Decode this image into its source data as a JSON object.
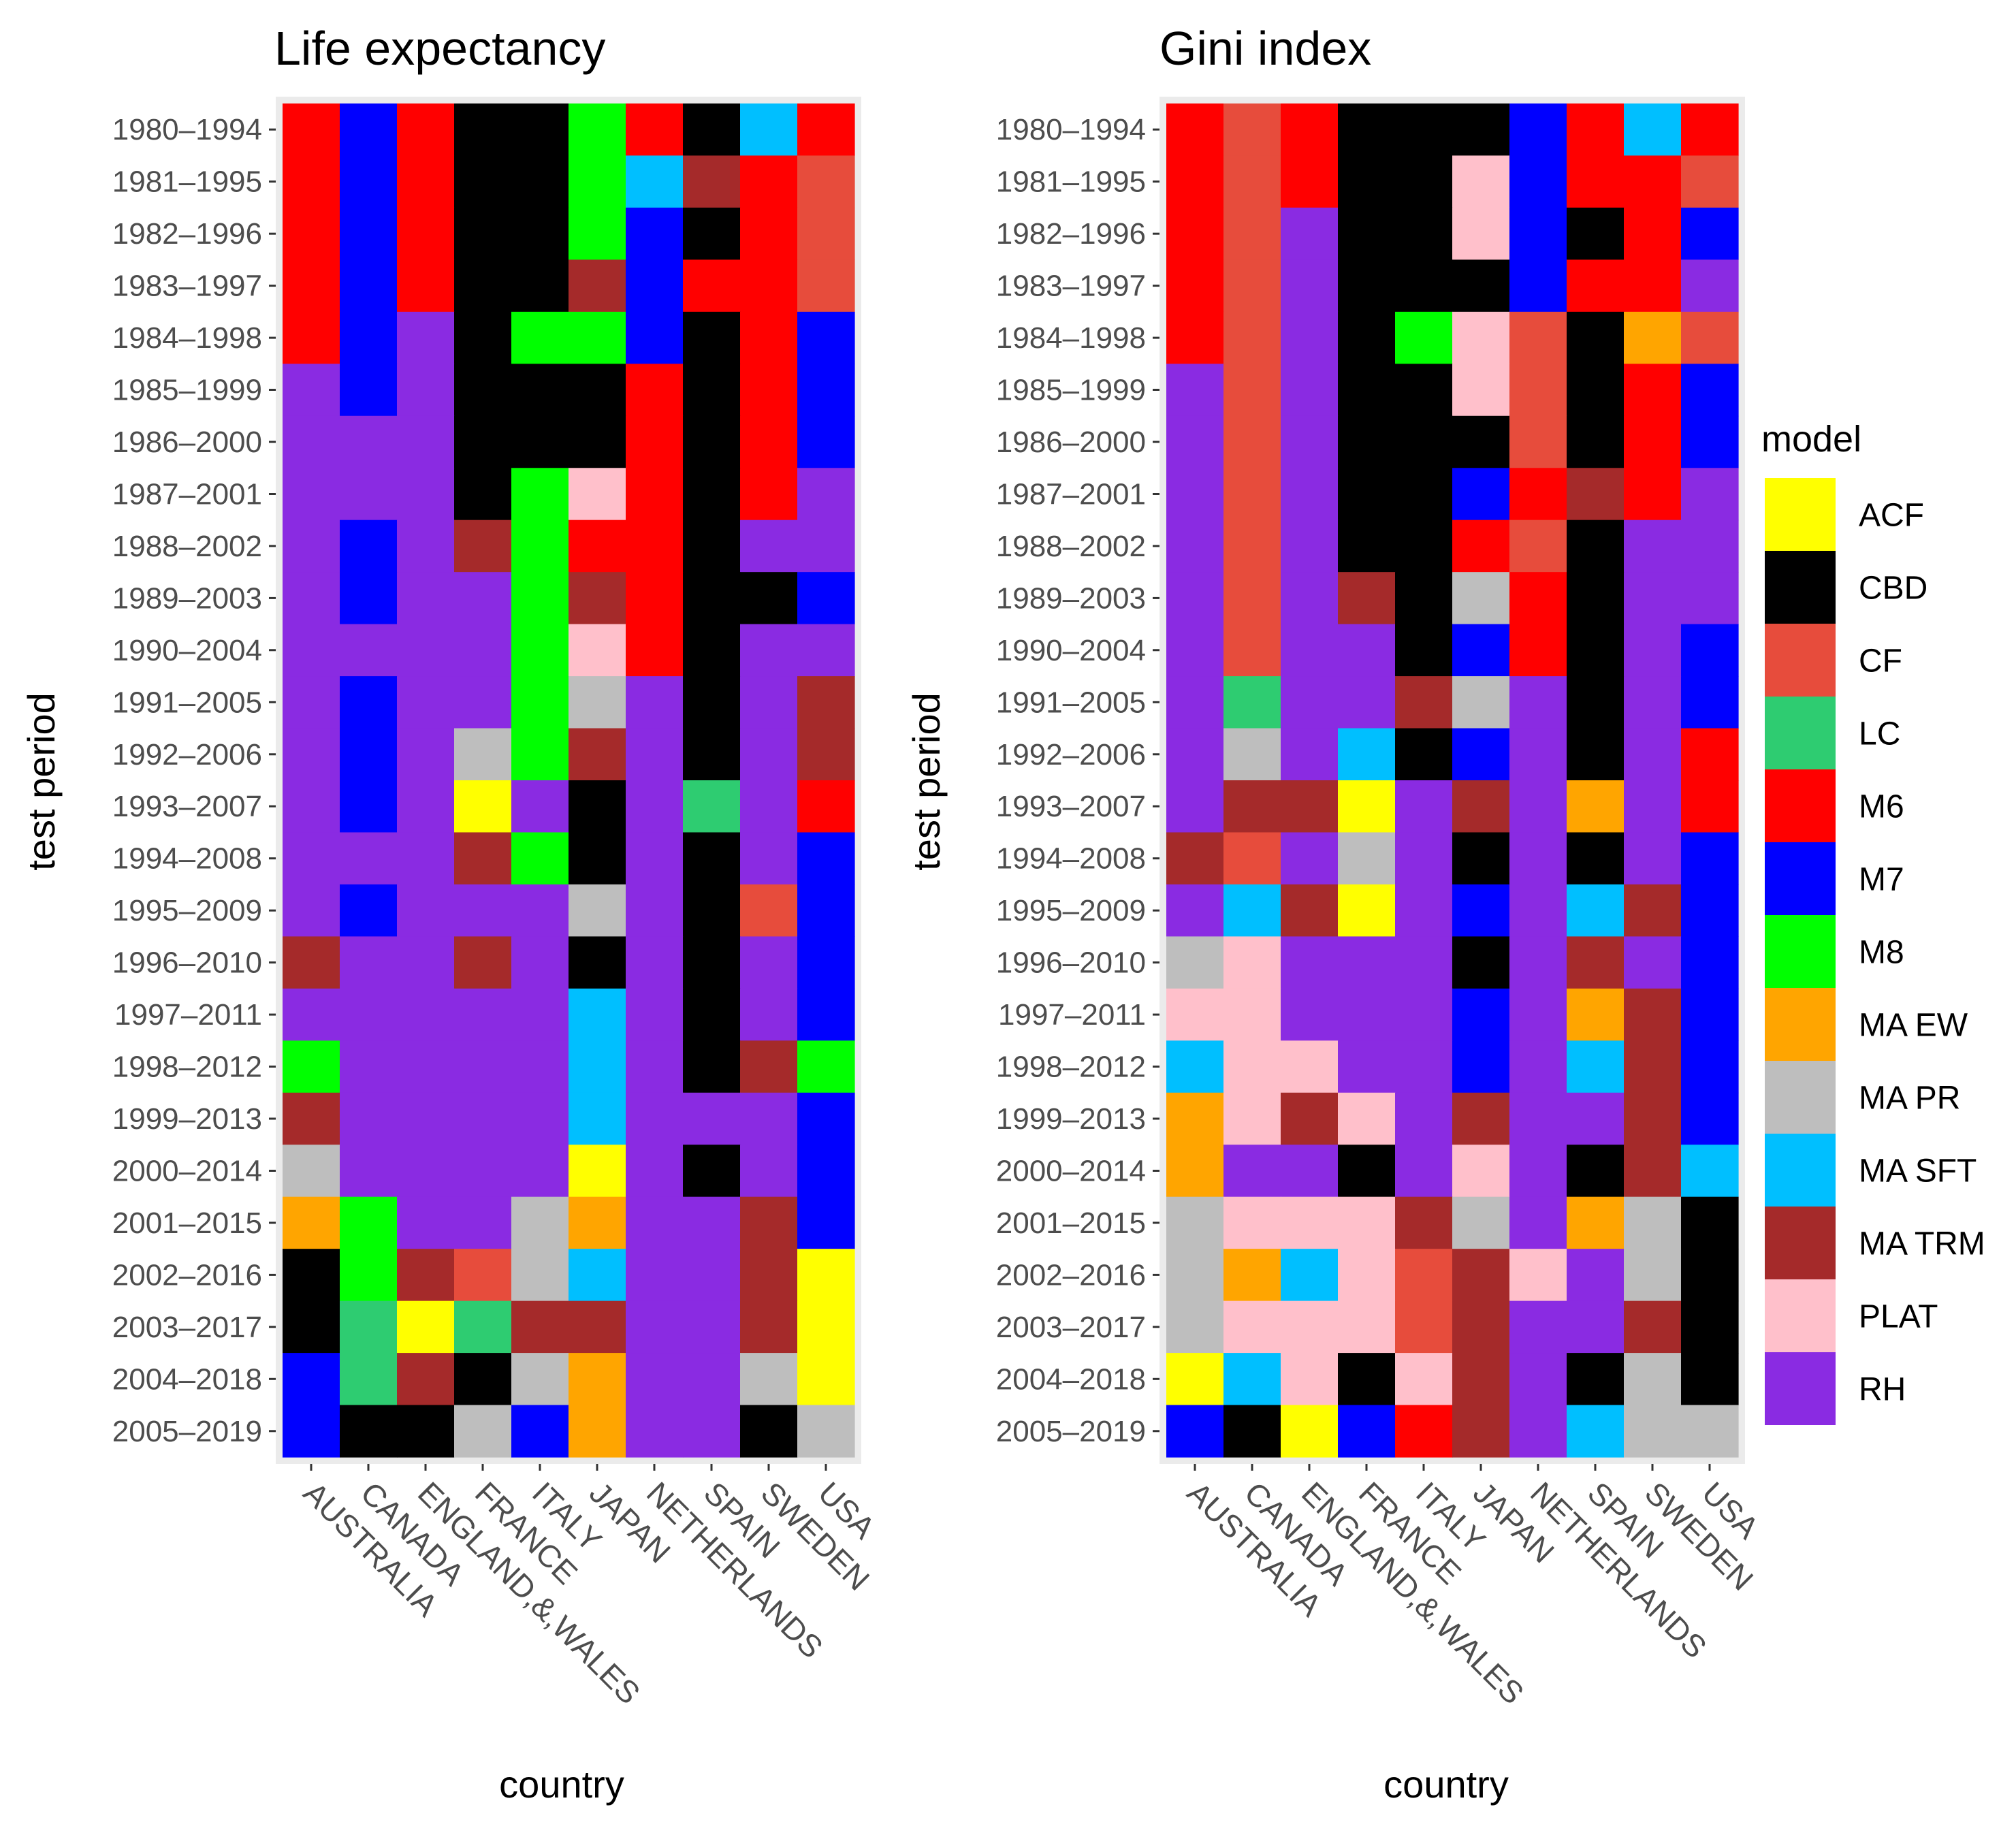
{
  "chart_data": [
    {
      "type": "heatmap",
      "title": "Life expectancy",
      "xlabel": "country",
      "ylabel": "test period",
      "x": [
        "AUSTRALIA",
        "CANADA",
        "ENGLAND,&,WALES",
        "FRANCE",
        "ITALY",
        "JAPAN",
        "NETHERLANDS",
        "SPAIN",
        "SWEDEN",
        "USA"
      ],
      "y": [
        "1980–1994",
        "1981–1995",
        "1982–1996",
        "1983–1997",
        "1984–1998",
        "1985–1999",
        "1986–2000",
        "1987–2001",
        "1988–2002",
        "1989–2003",
        "1990–2004",
        "1991–2005",
        "1992–2006",
        "1993–2007",
        "1994–2008",
        "1995–2009",
        "1996–2010",
        "1997–2011",
        "1998–2012",
        "1999–2013",
        "2000–2014",
        "2001–2015",
        "2002–2016",
        "2003–2017",
        "2004–2018",
        "2005–2019"
      ],
      "cells": [
        [
          "M6",
          "M7",
          "M6",
          "CBD",
          "CBD",
          "M8",
          "M6",
          "CBD",
          "MA SFT",
          "M6"
        ],
        [
          "M6",
          "M7",
          "M6",
          "CBD",
          "CBD",
          "M8",
          "MA SFT",
          "MA TRM",
          "M6",
          "CF"
        ],
        [
          "M6",
          "M7",
          "M6",
          "CBD",
          "CBD",
          "M8",
          "M7",
          "CBD",
          "M6",
          "CF"
        ],
        [
          "M6",
          "M7",
          "M6",
          "CBD",
          "CBD",
          "MA TRM",
          "M7",
          "M6",
          "M6",
          "CF"
        ],
        [
          "M6",
          "M7",
          "RH",
          "CBD",
          "M8",
          "M8",
          "M7",
          "CBD",
          "M6",
          "M7"
        ],
        [
          "RH",
          "M7",
          "RH",
          "CBD",
          "CBD",
          "CBD",
          "M6",
          "CBD",
          "M6",
          "M7"
        ],
        [
          "RH",
          "RH",
          "RH",
          "CBD",
          "CBD",
          "CBD",
          "M6",
          "CBD",
          "M6",
          "M7"
        ],
        [
          "RH",
          "RH",
          "RH",
          "CBD",
          "M8",
          "PLAT",
          "M6",
          "CBD",
          "M6",
          "RH"
        ],
        [
          "RH",
          "M7",
          "RH",
          "MA TRM",
          "M8",
          "M6",
          "M6",
          "CBD",
          "RH",
          "RH"
        ],
        [
          "RH",
          "M7",
          "RH",
          "RH",
          "M8",
          "MA TRM",
          "M6",
          "CBD",
          "CBD",
          "M7"
        ],
        [
          "RH",
          "RH",
          "RH",
          "RH",
          "M8",
          "PLAT",
          "M6",
          "CBD",
          "RH",
          "RH"
        ],
        [
          "RH",
          "M7",
          "RH",
          "RH",
          "M8",
          "MA PR",
          "RH",
          "CBD",
          "RH",
          "MA TRM"
        ],
        [
          "RH",
          "M7",
          "RH",
          "MA PR",
          "M8",
          "MA TRM",
          "RH",
          "CBD",
          "RH",
          "MA TRM"
        ],
        [
          "RH",
          "M7",
          "RH",
          "ACF",
          "RH",
          "CBD",
          "RH",
          "LC",
          "RH",
          "M6"
        ],
        [
          "RH",
          "RH",
          "RH",
          "MA TRM",
          "M8",
          "CBD",
          "RH",
          "CBD",
          "RH",
          "M7"
        ],
        [
          "RH",
          "M7",
          "RH",
          "RH",
          "RH",
          "MA PR",
          "RH",
          "CBD",
          "CF",
          "M7"
        ],
        [
          "MA TRM",
          "RH",
          "RH",
          "MA TRM",
          "RH",
          "CBD",
          "RH",
          "CBD",
          "RH",
          "M7"
        ],
        [
          "RH",
          "RH",
          "RH",
          "RH",
          "RH",
          "MA SFT",
          "RH",
          "CBD",
          "RH",
          "M7"
        ],
        [
          "M8",
          "RH",
          "RH",
          "RH",
          "RH",
          "MA SFT",
          "RH",
          "CBD",
          "MA TRM",
          "M8"
        ],
        [
          "MA TRM",
          "RH",
          "RH",
          "RH",
          "RH",
          "MA SFT",
          "RH",
          "RH",
          "RH",
          "M7"
        ],
        [
          "MA PR",
          "RH",
          "RH",
          "RH",
          "RH",
          "ACF",
          "RH",
          "CBD",
          "RH",
          "M7"
        ],
        [
          "MA EW",
          "M8",
          "RH",
          "RH",
          "MA PR",
          "MA EW",
          "RH",
          "RH",
          "MA TRM",
          "M7"
        ],
        [
          "CBD",
          "M8",
          "MA TRM",
          "CF",
          "MA PR",
          "MA SFT",
          "RH",
          "RH",
          "MA TRM",
          "ACF"
        ],
        [
          "CBD",
          "LC",
          "ACF",
          "LC",
          "MA TRM",
          "MA TRM",
          "RH",
          "RH",
          "MA TRM",
          "ACF"
        ],
        [
          "M7",
          "LC",
          "MA TRM",
          "CBD",
          "MA PR",
          "MA EW",
          "RH",
          "RH",
          "MA PR",
          "ACF"
        ],
        [
          "M7",
          "CBD",
          "CBD",
          "MA PR",
          "M7",
          "MA EW",
          "RH",
          "RH",
          "CBD",
          "MA PR"
        ]
      ]
    },
    {
      "type": "heatmap",
      "title": "Gini index",
      "xlabel": "country",
      "ylabel": "test period",
      "x": [
        "AUSTRALIA",
        "CANADA",
        "ENGLAND,&,WALES",
        "FRANCE",
        "ITALY",
        "JAPAN",
        "NETHERLANDS",
        "SPAIN",
        "SWEDEN",
        "USA"
      ],
      "y": [
        "1980–1994",
        "1981–1995",
        "1982–1996",
        "1983–1997",
        "1984–1998",
        "1985–1999",
        "1986–2000",
        "1987–2001",
        "1988–2002",
        "1989–2003",
        "1990–2004",
        "1991–2005",
        "1992–2006",
        "1993–2007",
        "1994–2008",
        "1995–2009",
        "1996–2010",
        "1997–2011",
        "1998–2012",
        "1999–2013",
        "2000–2014",
        "2001–2015",
        "2002–2016",
        "2003–2017",
        "2004–2018",
        "2005–2019"
      ],
      "cells": [
        [
          "M6",
          "CF",
          "M6",
          "CBD",
          "CBD",
          "CBD",
          "M7",
          "M6",
          "MA SFT",
          "M6"
        ],
        [
          "M6",
          "CF",
          "M6",
          "CBD",
          "CBD",
          "PLAT",
          "M7",
          "M6",
          "M6",
          "CF"
        ],
        [
          "M6",
          "CF",
          "RH",
          "CBD",
          "CBD",
          "PLAT",
          "M7",
          "CBD",
          "M6",
          "M7"
        ],
        [
          "M6",
          "CF",
          "RH",
          "CBD",
          "CBD",
          "CBD",
          "M7",
          "M6",
          "M6",
          "RH"
        ],
        [
          "M6",
          "CF",
          "RH",
          "CBD",
          "M8",
          "PLAT",
          "CF",
          "CBD",
          "MA EW",
          "CF"
        ],
        [
          "RH",
          "CF",
          "RH",
          "CBD",
          "CBD",
          "PLAT",
          "CF",
          "CBD",
          "M6",
          "M7"
        ],
        [
          "RH",
          "CF",
          "RH",
          "CBD",
          "CBD",
          "CBD",
          "CF",
          "CBD",
          "M6",
          "M7"
        ],
        [
          "RH",
          "CF",
          "RH",
          "CBD",
          "CBD",
          "M7",
          "M6",
          "MA TRM",
          "M6",
          "RH"
        ],
        [
          "RH",
          "CF",
          "RH",
          "CBD",
          "CBD",
          "M6",
          "CF",
          "CBD",
          "RH",
          "RH"
        ],
        [
          "RH",
          "CF",
          "RH",
          "MA TRM",
          "CBD",
          "MA PR",
          "M6",
          "CBD",
          "RH",
          "RH"
        ],
        [
          "RH",
          "CF",
          "RH",
          "RH",
          "CBD",
          "M7",
          "M6",
          "CBD",
          "RH",
          "M7"
        ],
        [
          "RH",
          "LC",
          "RH",
          "RH",
          "MA TRM",
          "MA PR",
          "RH",
          "CBD",
          "RH",
          "M7"
        ],
        [
          "RH",
          "MA PR",
          "RH",
          "MA SFT",
          "CBD",
          "M7",
          "RH",
          "CBD",
          "RH",
          "M6"
        ],
        [
          "RH",
          "MA TRM",
          "MA TRM",
          "ACF",
          "RH",
          "MA TRM",
          "RH",
          "MA EW",
          "RH",
          "M6"
        ],
        [
          "MA TRM",
          "CF",
          "RH",
          "MA PR",
          "RH",
          "CBD",
          "RH",
          "CBD",
          "RH",
          "M7"
        ],
        [
          "RH",
          "MA SFT",
          "MA TRM",
          "ACF",
          "RH",
          "M7",
          "RH",
          "MA SFT",
          "MA TRM",
          "M7"
        ],
        [
          "MA PR",
          "PLAT",
          "RH",
          "RH",
          "RH",
          "CBD",
          "RH",
          "MA TRM",
          "RH",
          "M7"
        ],
        [
          "PLAT",
          "PLAT",
          "RH",
          "RH",
          "RH",
          "M7",
          "RH",
          "MA EW",
          "MA TRM",
          "M7"
        ],
        [
          "MA SFT",
          "PLAT",
          "PLAT",
          "RH",
          "RH",
          "M7",
          "RH",
          "MA SFT",
          "MA TRM",
          "M7"
        ],
        [
          "MA EW",
          "PLAT",
          "MA TRM",
          "PLAT",
          "RH",
          "MA TRM",
          "RH",
          "RH",
          "MA TRM",
          "M7"
        ],
        [
          "MA EW",
          "RH",
          "RH",
          "CBD",
          "RH",
          "PLAT",
          "RH",
          "CBD",
          "MA TRM",
          "MA SFT"
        ],
        [
          "MA PR",
          "PLAT",
          "PLAT",
          "PLAT",
          "MA TRM",
          "MA PR",
          "RH",
          "MA EW",
          "MA PR",
          "CBD"
        ],
        [
          "MA PR",
          "MA EW",
          "MA SFT",
          "PLAT",
          "CF",
          "MA TRM",
          "PLAT",
          "RH",
          "MA PR",
          "CBD"
        ],
        [
          "MA PR",
          "PLAT",
          "PLAT",
          "PLAT",
          "CF",
          "MA TRM",
          "RH",
          "RH",
          "MA TRM",
          "CBD"
        ],
        [
          "ACF",
          "MA SFT",
          "PLAT",
          "CBD",
          "PLAT",
          "MA TRM",
          "RH",
          "CBD",
          "MA PR",
          "CBD"
        ],
        [
          "M7",
          "CBD",
          "ACF",
          "M7",
          "M6",
          "MA TRM",
          "RH",
          "MA SFT",
          "MA PR",
          "MA PR"
        ]
      ]
    }
  ],
  "legend": {
    "title": "model",
    "placement": "right",
    "items": [
      {
        "label": "ACF",
        "color": "#FFFF00"
      },
      {
        "label": "CBD",
        "color": "#000000"
      },
      {
        "label": "CF",
        "color": "#E74C3C"
      },
      {
        "label": "LC",
        "color": "#2ECC71"
      },
      {
        "label": "M6",
        "color": "#FF0000"
      },
      {
        "label": "M7",
        "color": "#0000FF"
      },
      {
        "label": "M8",
        "color": "#00FF00"
      },
      {
        "label": "MA EW",
        "color": "#FFA500"
      },
      {
        "label": "MA PR",
        "color": "#BEBEBE"
      },
      {
        "label": "MA SFT",
        "color": "#00BFFF"
      },
      {
        "label": "MA TRM",
        "color": "#A52A2A"
      },
      {
        "label": "PLAT",
        "color": "#FFC0CB"
      },
      {
        "label": "RH",
        "color": "#8A2BE2"
      }
    ]
  }
}
